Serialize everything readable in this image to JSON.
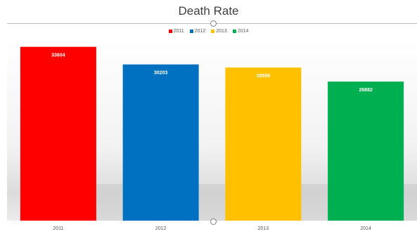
{
  "chart_data": {
    "type": "bar",
    "title": "Death Rate",
    "xlabel": "",
    "ylabel": "",
    "categories": [
      "2011",
      "2012",
      "2013",
      "2014"
    ],
    "series": [
      {
        "name": "2011",
        "values": [
          33604,
          null,
          null,
          null
        ]
      },
      {
        "name": "2012",
        "values": [
          null,
          30203,
          null,
          null
        ]
      },
      {
        "name": "2013",
        "values": [
          null,
          null,
          29599,
          null
        ]
      },
      {
        "name": "2014",
        "values": [
          null,
          null,
          null,
          26882
        ]
      }
    ],
    "values": [
      33604,
      30203,
      29599,
      26882
    ],
    "colors": [
      "#ff0000",
      "#0070c0",
      "#ffc000",
      "#00b050"
    ],
    "ylim": [
      0,
      36000
    ],
    "legend": "top-center",
    "grid": false
  }
}
